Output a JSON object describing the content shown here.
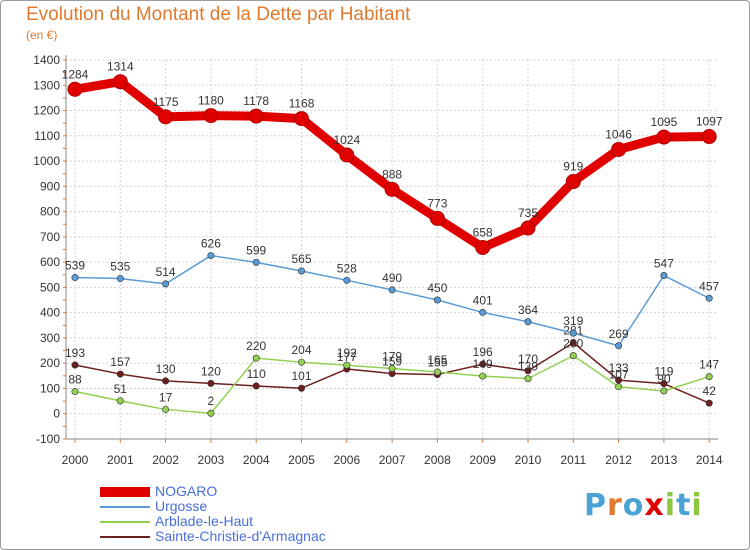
{
  "chart_data": {
    "type": "line",
    "title": "Evolution du Montant de la Dette par Habitant",
    "subtitle": "(en €)",
    "x": [
      "2000",
      "2001",
      "2002",
      "2003",
      "2004",
      "2005",
      "2006",
      "2007",
      "2008",
      "2009",
      "2010",
      "2011",
      "2012",
      "2013",
      "2014"
    ],
    "ylim": [
      -100,
      1400
    ],
    "yticks": [
      -100,
      0,
      100,
      200,
      300,
      400,
      500,
      600,
      700,
      800,
      900,
      1000,
      1100,
      1200,
      1300,
      1400
    ],
    "grid": true,
    "legend_placement": "bottom-left",
    "series": [
      {
        "name": "NOGARO",
        "color": "#e00000",
        "values": [
          1284,
          1314,
          1175,
          1180,
          1178,
          1168,
          1024,
          888,
          773,
          658,
          735,
          919,
          1046,
          1095,
          1097
        ]
      },
      {
        "name": "Urgosse",
        "color": "#5b9bd5",
        "values": [
          539,
          535,
          514,
          626,
          599,
          565,
          528,
          490,
          450,
          401,
          364,
          319,
          269,
          547,
          457
        ]
      },
      {
        "name": "Arblade-le-Haut",
        "color": "#92d050",
        "values": [
          88,
          51,
          17,
          2,
          220,
          204,
          192,
          179,
          165,
          149,
          139,
          230,
          107,
          90,
          147
        ]
      },
      {
        "name": "Sainte-Christie-d'Armagnac",
        "color": "#6b1f1f",
        "values": [
          193,
          157,
          130,
          120,
          110,
          101,
          177,
          159,
          155,
          196,
          170,
          281,
          133,
          119,
          42
        ]
      }
    ]
  },
  "brand": {
    "letters": [
      "P",
      "r",
      "o",
      "x",
      "i",
      "t",
      "i"
    ],
    "colors": [
      "#4aa3d6",
      "#e07a2e",
      "#4aa3d6",
      "#e00000",
      "#8dc63f",
      "#4aa3d6",
      "#8dc63f"
    ]
  }
}
